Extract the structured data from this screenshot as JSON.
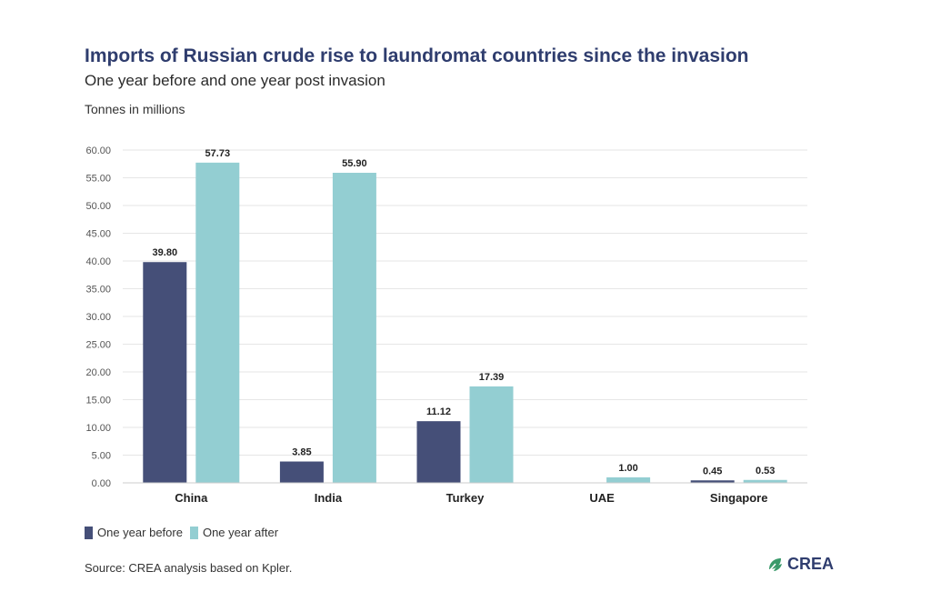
{
  "title": "Imports of Russian crude rise to laundromat countries since the invasion",
  "subtitle": "One year before and one year post invasion",
  "unit_label": "Tonnes in millions",
  "source": "Source: CREA analysis based on Kpler.",
  "logo_text": "CREA",
  "colors": {
    "before": "#454f78",
    "after": "#93ced2",
    "grid": "#e6e6e6",
    "logo_green": "#3a9a6b"
  },
  "chart_data": {
    "type": "bar",
    "categories": [
      "China",
      "India",
      "Turkey",
      "UAE",
      "Singapore"
    ],
    "series": [
      {
        "name": "One year before",
        "values": [
          39.8,
          3.85,
          11.12,
          null,
          0.45
        ]
      },
      {
        "name": "One year after",
        "values": [
          57.73,
          55.9,
          17.39,
          1.0,
          0.53
        ]
      }
    ],
    "y_ticks": [
      "0.00",
      "5.00",
      "10.00",
      "15.00",
      "20.00",
      "25.00",
      "30.00",
      "35.00",
      "40.00",
      "45.00",
      "50.00",
      "55.00",
      "60.00"
    ],
    "ylim": [
      0,
      60
    ],
    "grid": true,
    "legend_position": "bottom-left"
  }
}
